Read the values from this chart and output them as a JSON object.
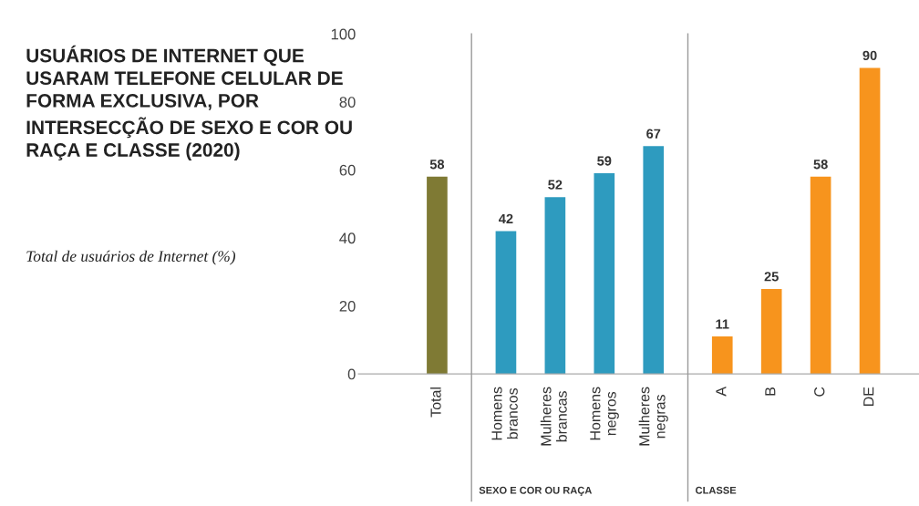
{
  "chart_data": {
    "type": "bar",
    "title": "USUÁRIOS DE INTERNET QUE USARAM TELEFONE CELULAR DE FORMA EXCLUSIVA, POR INTERSECÇÃO DE SEXO E COR OU RAÇA E CLASSE (2020)",
    "subtitle": "Total de usuários de Internet (%)",
    "categories": [
      "Total",
      "Homens brancos",
      "Mulheres brancas",
      "Homens negros",
      "Mulheres negras",
      "A",
      "B",
      "C",
      "DE"
    ],
    "values": [
      58,
      42,
      52,
      59,
      67,
      11,
      25,
      58,
      90
    ],
    "colors": [
      "#7f7a34",
      "#2e9bbf",
      "#2e9bbf",
      "#2e9bbf",
      "#2e9bbf",
      "#f7941d",
      "#f7941d",
      "#f7941d",
      "#f7941d"
    ],
    "ylim": [
      0,
      100
    ],
    "yticks": [
      0,
      20,
      40,
      60,
      80,
      100
    ],
    "data_labels": true,
    "grid": false,
    "annotations": [
      "SEXO E COR OU RAÇA",
      "CLASSE"
    ]
  }
}
